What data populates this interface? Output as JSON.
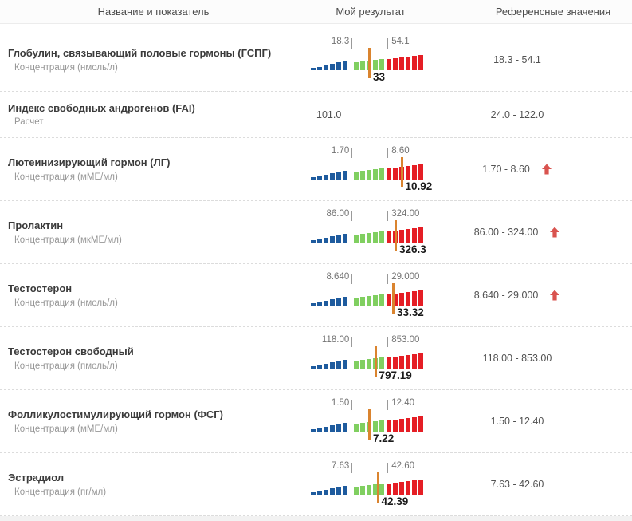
{
  "header": {
    "col_name": "Название и показатель",
    "col_result": "Мой результат",
    "col_ref": "Референсные значения"
  },
  "scale": {
    "below_color": "#1e5b9e",
    "normal_color": "#80cf60",
    "above_color": "#e51e25",
    "marker_color": "#da842f",
    "arrow_color": "#d9534f",
    "below_heights": [
      3,
      4,
      6,
      8,
      10,
      11
    ],
    "normal_heights": [
      10,
      11,
      12,
      13,
      14
    ],
    "above_heights": [
      14,
      15,
      16,
      17,
      18,
      19
    ],
    "tick_lo_pct": 35.5,
    "tick_hi_pct": 65.5
  },
  "rows": [
    {
      "title": "Глобулин, связывающий половые гормоны (ГСПГ)",
      "subtitle": "Концентрация (нмоль/л)",
      "result": {
        "type": "chart",
        "lo": "18.3",
        "hi": "54.1",
        "value": "33",
        "marker_pct": 50
      },
      "ref": "18.3 - 54.1",
      "ref_arrow": false
    },
    {
      "title": "Индекс свободных андрогенов (FAI)",
      "subtitle": "Расчет",
      "result": {
        "type": "text",
        "value": "101.0"
      },
      "ref": "24.0 - 122.0",
      "ref_arrow": false
    },
    {
      "title": "Лютеинизирующий гормон (ЛГ)",
      "subtitle": "Концентрация (мМЕ/мл)",
      "result": {
        "type": "chart",
        "lo": "1.70",
        "hi": "8.60",
        "value": "10.92",
        "marker_pct": 77
      },
      "ref": "1.70 - 8.60",
      "ref_arrow": true
    },
    {
      "title": "Пролактин",
      "subtitle": "Концентрация (мкМЕ/мл)",
      "result": {
        "type": "chart",
        "lo": "86.00",
        "hi": "324.00",
        "value": "326.3",
        "marker_pct": 72
      },
      "ref": "86.00 - 324.00",
      "ref_arrow": true
    },
    {
      "title": "Тестостерон",
      "subtitle": "Концентрация (нмоль/л)",
      "result": {
        "type": "chart",
        "lo": "8.640",
        "hi": "29.000",
        "value": "33.32",
        "marker_pct": 70
      },
      "ref": "8.640 - 29.000",
      "ref_arrow": true
    },
    {
      "title": "Тестостерон свободный",
      "subtitle": "Концентрация (пмоль/л)",
      "result": {
        "type": "chart",
        "lo": "118.00",
        "hi": "853.00",
        "value": "797.19",
        "marker_pct": 55
      },
      "ref": "118.00 - 853.00",
      "ref_arrow": false
    },
    {
      "title": "Фолликулостимулирующий гормон (ФСГ)",
      "subtitle": "Концентрация (мМЕ/мл)",
      "result": {
        "type": "chart",
        "lo": "1.50",
        "hi": "12.40",
        "value": "7.22",
        "marker_pct": 50
      },
      "ref": "1.50 - 12.40",
      "ref_arrow": false
    },
    {
      "title": "Эстрадиол",
      "subtitle": "Концентрация (пг/мл)",
      "result": {
        "type": "chart",
        "lo": "7.63",
        "hi": "42.60",
        "value": "42.39",
        "marker_pct": 57
      },
      "ref": "7.63 - 42.60",
      "ref_arrow": false
    }
  ]
}
